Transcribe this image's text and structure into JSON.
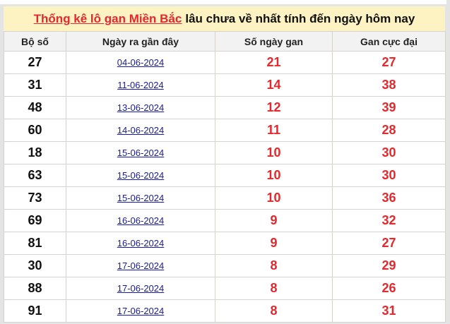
{
  "title": {
    "link_text": "Thống kê lô gan Miền Bắc",
    "rest_text": "lâu chưa về nhất tính đến ngày hôm nay"
  },
  "colors": {
    "accent_red": "#e8262b",
    "link_blue": "#1a1aa6",
    "title_bg": "#fdf2c2"
  },
  "table": {
    "headers": [
      "Bộ số",
      "Ngày ra gần đây",
      "Số ngày gan",
      "Gan cực đại"
    ],
    "rows": [
      [
        "27",
        "04-06-2024",
        "21",
        "27"
      ],
      [
        "31",
        "11-06-2024",
        "14",
        "38"
      ],
      [
        "48",
        "13-06-2024",
        "12",
        "39"
      ],
      [
        "60",
        "14-06-2024",
        "11",
        "28"
      ],
      [
        "18",
        "15-06-2024",
        "10",
        "30"
      ],
      [
        "63",
        "15-06-2024",
        "10",
        "30"
      ],
      [
        "73",
        "15-06-2024",
        "10",
        "36"
      ],
      [
        "69",
        "16-06-2024",
        "9",
        "32"
      ],
      [
        "81",
        "16-06-2024",
        "9",
        "27"
      ],
      [
        "30",
        "17-06-2024",
        "8",
        "29"
      ],
      [
        "88",
        "17-06-2024",
        "8",
        "26"
      ],
      [
        "91",
        "17-06-2024",
        "8",
        "31"
      ]
    ]
  }
}
